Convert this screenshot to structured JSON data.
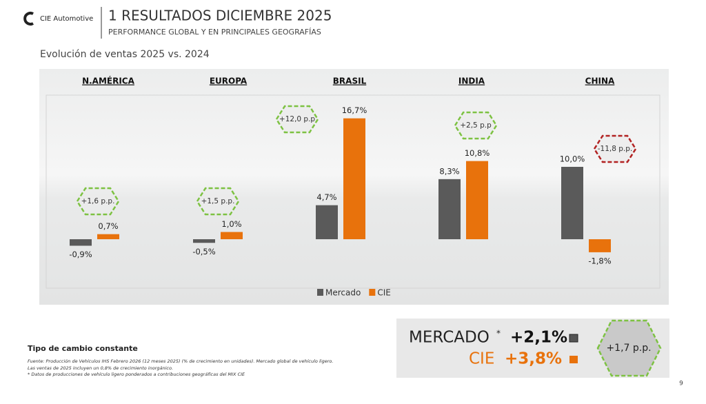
{
  "header": {
    "logo": "CIE Automotive",
    "title": "1 RESULTADOS DICIEMBRE 2025",
    "subtitle": "PERFORMANCE GLOBAL Y EN PRINCIPALES GEOGRAFÍAS"
  },
  "chart_data": {
    "type": "bar",
    "title": "Evolución de ventas 2025 vs. 2024",
    "categories": [
      "N.AMÉRICA",
      "EUROPA",
      "BRASIL",
      "INDIA",
      "CHINA"
    ],
    "series": [
      {
        "name": "Mercado",
        "color": "#5a5a5a",
        "values": [
          -0.9,
          -0.5,
          4.7,
          8.3,
          10.0
        ],
        "value_labels": [
          "-0,9%",
          "-0,5%",
          "4,7%",
          "8,3%",
          "10,0%"
        ]
      },
      {
        "name": "CIE",
        "color": "#e8720c",
        "values": [
          0.7,
          1.0,
          16.7,
          10.8,
          -1.8
        ],
        "value_labels": [
          "0,7%",
          "1,0%",
          "16,7%",
          "10,8%",
          "-1,8%"
        ]
      }
    ],
    "annotations": [
      "+1,6 p.p.",
      "+1,5 p.p.",
      "+12,0 p.p",
      "+2,5 p.p",
      "-11,8 p.p."
    ],
    "annotation_colors": [
      "#7dc242",
      "#7dc242",
      "#7dc242",
      "#7dc242",
      "#b22222"
    ],
    "legend": "bottom"
  },
  "summary": {
    "market_label": "MERCADO",
    "market_note": "*",
    "market_value": "+2,1%",
    "cie_label": "CIE",
    "cie_value": "+3,8%",
    "difference": "+1,7 p.p."
  },
  "footer": {
    "note": "Tipo de cambio constante",
    "sources": [
      "Fuente: Producción de Vehículos IHS Febrero 2026 (12 meses 2025) (% de crecimiento en unidades). Mercado global de vehículo ligero.",
      "Las ventas de 2025 incluyen un 0,8% de crecimiento inorgánico.",
      "* Datos de producciones de vehículo ligero ponderados a contribuciones geográficas del MIX CIE"
    ],
    "page": "9"
  }
}
